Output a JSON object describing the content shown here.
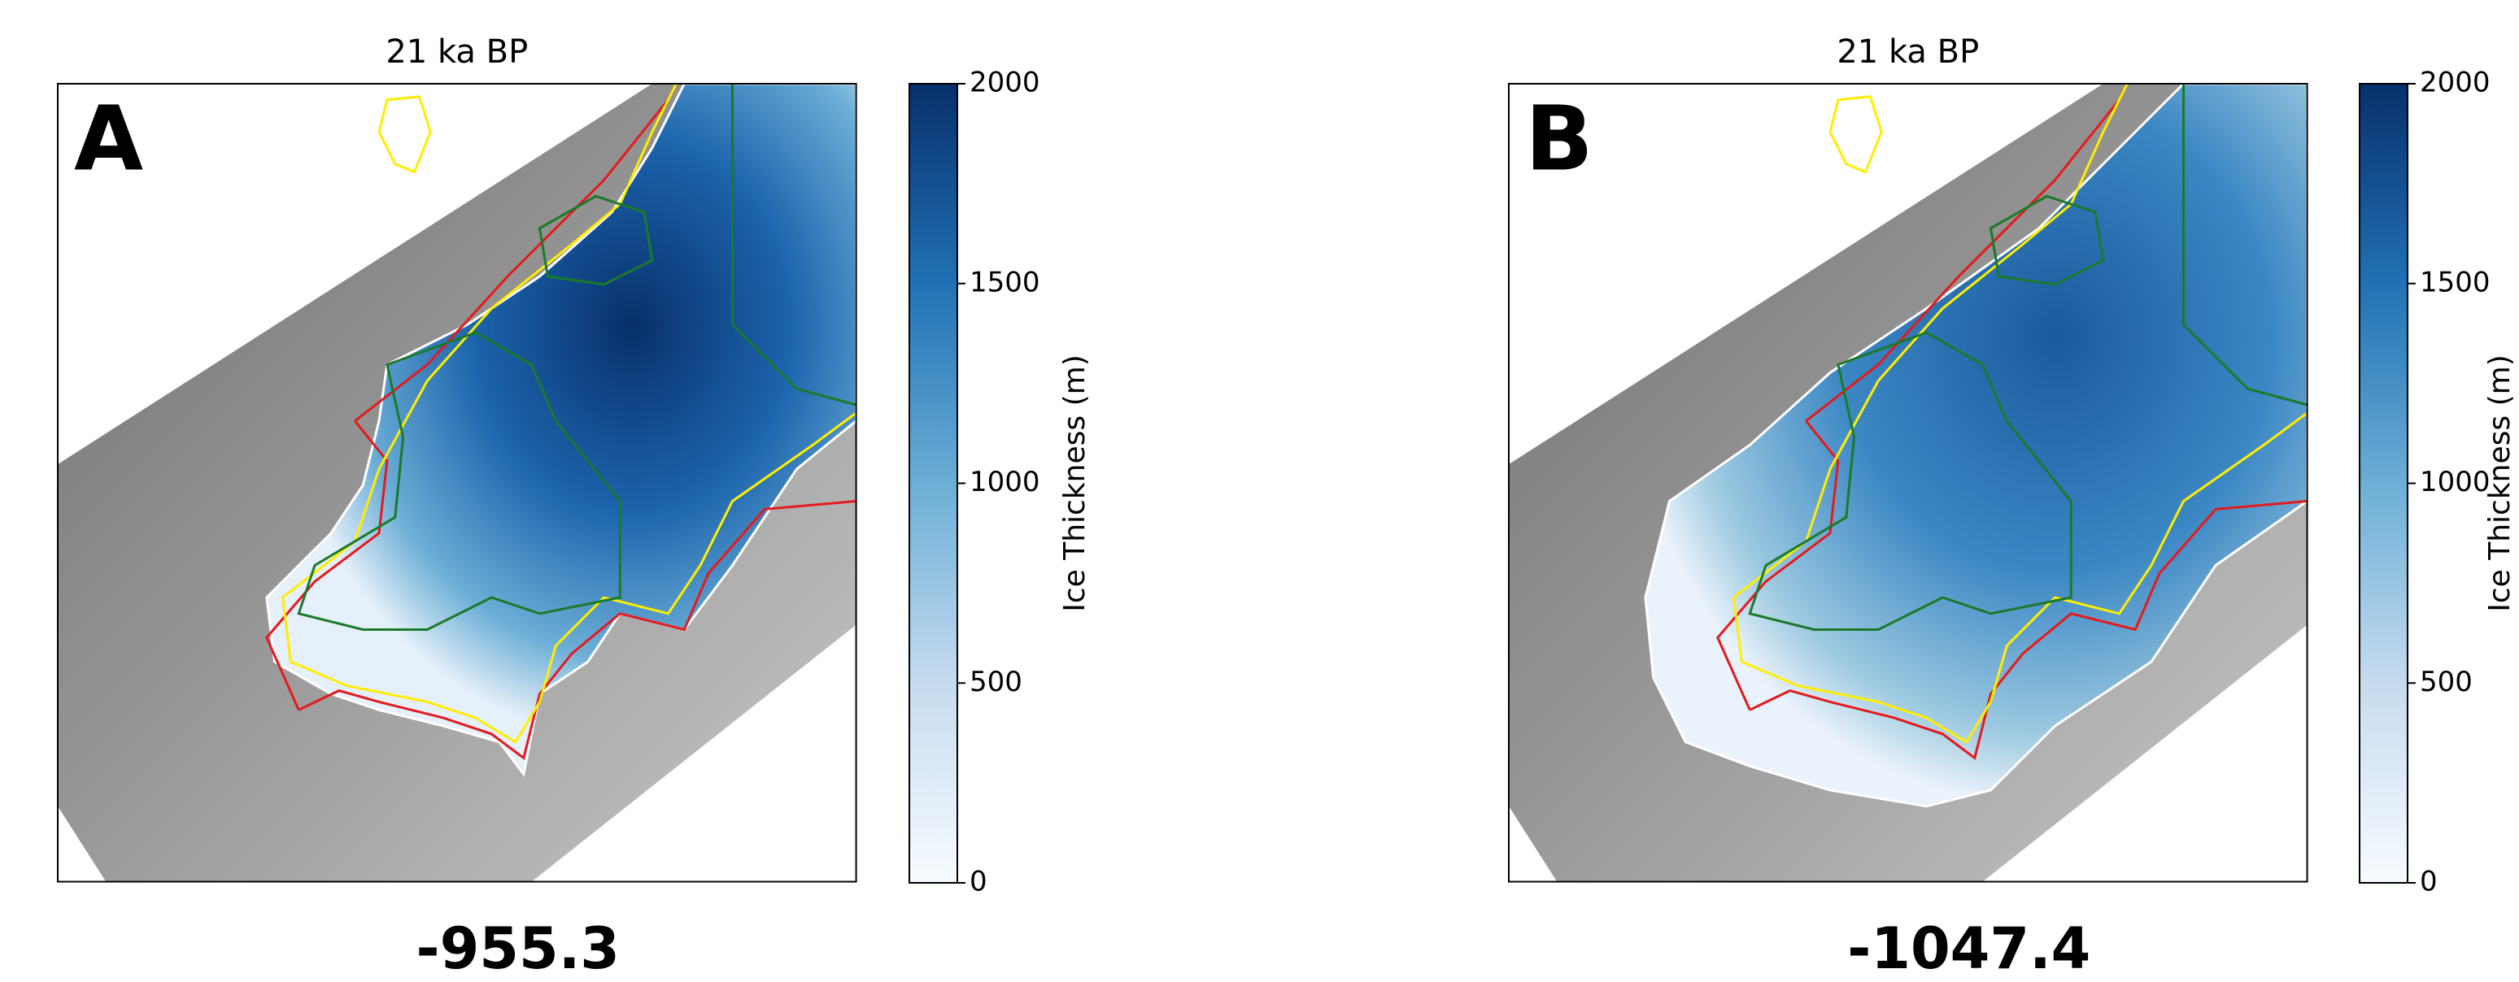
{
  "panels": [
    {
      "label": "A",
      "title": "21 ka BP",
      "colorbar": {
        "label": "Ice Thickness (m)",
        "ticks": [
          0,
          500,
          1000,
          1500,
          2000
        ]
      },
      "value": -955.3
    },
    {
      "label": "B",
      "title": "21 ka BP",
      "colorbar": {
        "label": "Ice Thickness (m)",
        "ticks": [
          0,
          500,
          1000,
          1500,
          2000
        ]
      },
      "value": -1047.4
    }
  ]
}
